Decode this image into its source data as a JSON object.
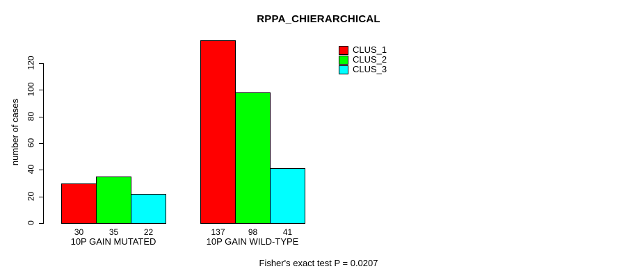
{
  "chart_data": {
    "type": "bar",
    "title": "RPPA_CHIERARCHICAL",
    "categories": [
      "10P GAIN MUTATED",
      "10P GAIN WILD-TYPE"
    ],
    "series": [
      {
        "name": "CLUS_1",
        "color": "#ff0000",
        "values": [
          30,
          137
        ]
      },
      {
        "name": "CLUS_2",
        "color": "#00ff00",
        "values": [
          35,
          98
        ]
      },
      {
        "name": "CLUS_3",
        "color": "#00ffff",
        "values": [
          22,
          41
        ]
      }
    ],
    "xlabel": "",
    "ylabel": "number of cases",
    "ylim": [
      0,
      120
    ],
    "yticks": [
      0,
      20,
      40,
      60,
      80,
      100,
      120
    ],
    "bar_value_labels": [
      [
        30,
        35,
        22
      ],
      [
        137,
        98,
        41
      ]
    ],
    "legend_position": "top-right",
    "grid": "off",
    "annotation": "Fisher's exact test P = 0.0207"
  }
}
